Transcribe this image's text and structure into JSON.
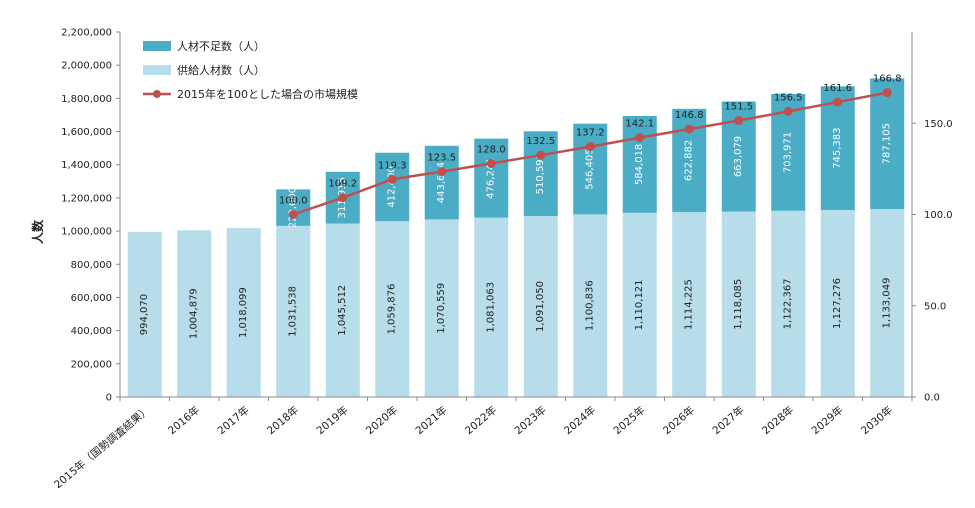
{
  "chart_data": {
    "type": "bar",
    "stacked": true,
    "categories": [
      "2015年（国勢調査結果）",
      "2016年",
      "2017年",
      "2018年",
      "2019年",
      "2020年",
      "2021年",
      "2022年",
      "2023年",
      "2024年",
      "2025年",
      "2026年",
      "2027年",
      "2028年",
      "2029年",
      "2030年"
    ],
    "series": [
      {
        "name": "供給人材数（人）",
        "kind": "bar",
        "axis": "left",
        "color": "#b6dde9",
        "label_color": "#222222",
        "values": [
          994070,
          1004879,
          1018099,
          1031538,
          1045512,
          1059876,
          1070559,
          1081063,
          1091050,
          1100836,
          1110121,
          1114225,
          1118085,
          1122367,
          1127276,
          1133049
        ],
        "labels": [
          "994,070",
          "1,004,879",
          "1,018,099",
          "1,031,538",
          "1,045,512",
          "1,059,876",
          "1,070,559",
          "1,081,063",
          "1,091,050",
          "1,100,836",
          "1,110,121",
          "1,114,225",
          "1,118,085",
          "1,122,367",
          "1,127,276",
          "1,133,049"
        ]
      },
      {
        "name": "人材不足数（人）",
        "kind": "bar",
        "axis": "left",
        "color": "#4aacc5",
        "label_color": "#ffffff",
        "values": [
          null,
          null,
          null,
          220000,
          311915,
          412400,
          443634,
          476241,
          510590,
          546405,
          584018,
          622882,
          663079,
          703971,
          745383,
          787105
        ],
        "labels": [
          "",
          "",
          "",
          "220,000",
          "311,915",
          "412,400",
          "443,634",
          "476,241",
          "510,590",
          "546,405",
          "584,018",
          "622,882",
          "663,079",
          "703,971",
          "745,383",
          "787,105"
        ]
      },
      {
        "name": "2015年を100とした場合の市場規模",
        "kind": "line",
        "axis": "right",
        "color": "#c0504d",
        "values": [
          null,
          null,
          null,
          100.0,
          109.2,
          119.3,
          123.5,
          128.0,
          132.5,
          137.2,
          142.1,
          146.8,
          151.5,
          156.5,
          161.6,
          166.8
        ],
        "labels": [
          "",
          "",
          "",
          "100.0",
          "109.2",
          "119.3",
          "123.5",
          "128.0",
          "132.5",
          "137.2",
          "142.1",
          "146.8",
          "151.5",
          "156.5",
          "161.6",
          "166.8"
        ]
      }
    ],
    "ylabel": "人数",
    "ylim": [
      0,
      2200000
    ],
    "yticks": [
      0,
      200000,
      400000,
      600000,
      800000,
      1000000,
      1200000,
      1400000,
      1600000,
      1800000,
      2000000,
      2200000
    ],
    "ytick_labels": [
      "0",
      "200,000",
      "400,000",
      "600,000",
      "800,000",
      "1,000,000",
      "1,200,000",
      "1,400,000",
      "1,600,000",
      "1,800,000",
      "2,000,000",
      "2,200,000"
    ],
    "y2lim": [
      0,
      200
    ],
    "y2ticks": [
      0,
      50,
      100,
      150
    ],
    "y2tick_labels": [
      "0.0",
      "50.0",
      "100.0",
      "150.0"
    ],
    "grid": false,
    "legend": {
      "position": "top-left",
      "order": [
        "人材不足数（人）",
        "供給人材数（人）",
        "2015年を100とした場合の市場規模"
      ]
    }
  }
}
